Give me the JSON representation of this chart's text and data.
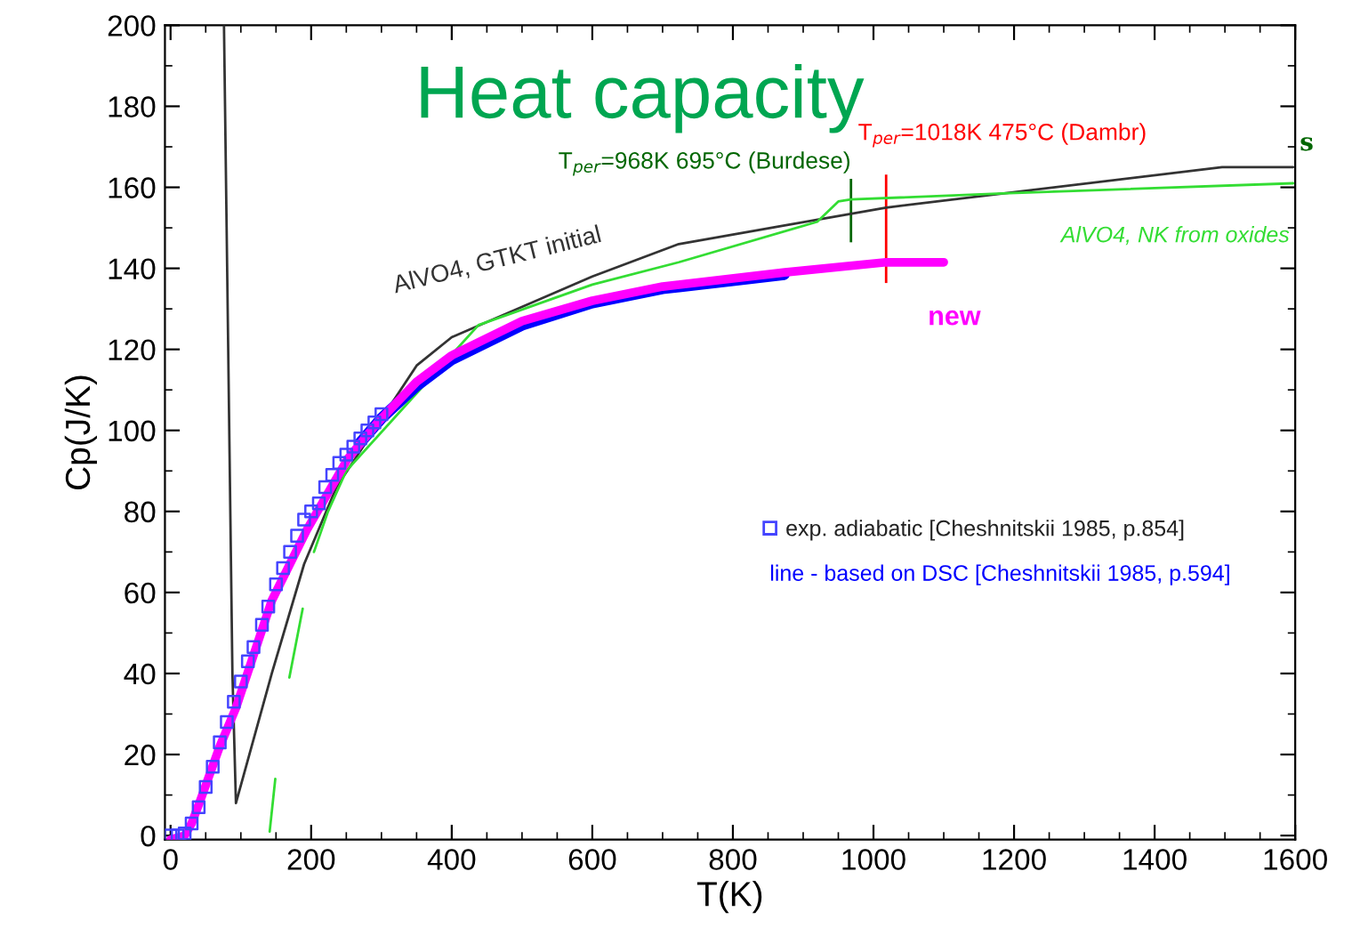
{
  "chart_data": {
    "type": "line",
    "title": "Heat capacity",
    "xlabel": "T(K)",
    "ylabel": "Cp(J/K)",
    "xlim": [
      -8,
      1600
    ],
    "ylim": [
      -1,
      200
    ],
    "xticks": [
      0,
      200,
      400,
      600,
      800,
      1000,
      1200,
      1400,
      1600
    ],
    "yticks": [
      0,
      20,
      40,
      60,
      80,
      100,
      120,
      140,
      160,
      180,
      200
    ],
    "grid": false,
    "legend": "right",
    "series": [
      {
        "name": "AlVO4, GTKT initial",
        "color": "#333333",
        "x": [
          76,
          88,
          93,
          144,
          190,
          236,
          350,
          400,
          600,
          723,
          1018,
          1496,
          1597
        ],
        "values": [
          200,
          40,
          8,
          40,
          67,
          86,
          116,
          123,
          138,
          146,
          155,
          165,
          165
        ]
      },
      {
        "name": "AlVO4, NK from oxides",
        "color": "#33dd33",
        "x": [
          141,
          149,
          160,
          169,
          188,
          196,
          204,
          224,
          250,
          438,
          600,
          723,
          920,
          950,
          968,
          1184,
          1597
        ],
        "values": [
          1,
          14,
          null,
          39,
          56,
          null,
          70,
          80,
          90,
          126,
          136,
          141.5,
          151.5,
          156.5,
          157,
          158.5,
          161
        ]
      },
      {
        "name": "line - based on DSC [Cheshnitskii 1985, p.594]",
        "color": "#0000ff",
        "x": [
          270,
          300,
          350,
          400,
          500,
          600,
          700,
          800,
          873
        ],
        "values": [
          97,
          103,
          111,
          117.5,
          126,
          131.5,
          135,
          137,
          138.5
        ]
      },
      {
        "name": "new",
        "color": "#ff00ff",
        "x": [
          0,
          20,
          30,
          43,
          70,
          93,
          144,
          194,
          252,
          295,
          350,
          400,
          500,
          600,
          700,
          874,
          1018,
          1100
        ],
        "values": [
          -1,
          0,
          3,
          9,
          22,
          31.5,
          58,
          75.5,
          93,
          102,
          112,
          118.5,
          127,
          132,
          135.5,
          139,
          141.5,
          141.5
        ]
      },
      {
        "name": "exp. adiabatic [Cheshnitskii 1985, p.854]",
        "type": "scatter",
        "marker": "square",
        "color": "#4444ff",
        "x": [
          0,
          10,
          20,
          30,
          40,
          50,
          60,
          70,
          80,
          90,
          100,
          110,
          118,
          130,
          139,
          150,
          160,
          170,
          180,
          190,
          200,
          211,
          220,
          230,
          240,
          250,
          260,
          270,
          280,
          290,
          300
        ],
        "values": [
          0,
          0,
          0.5,
          3,
          7,
          12,
          17,
          23,
          28,
          33,
          38,
          43,
          46.5,
          52,
          56.5,
          62,
          66,
          70,
          74,
          78,
          80,
          82,
          86,
          89,
          92,
          94,
          96,
          98,
          100,
          102,
          104
        ]
      }
    ],
    "ref_lines": [
      {
        "axis": "x",
        "value": 968,
        "label": "T$_{per}$=968K 695°C (Burdese)",
        "color": "#006600"
      },
      {
        "axis": "x",
        "value": 1018,
        "label": "T$_{per}$=1018K 475°C (Dambr)",
        "color": "#ff0000"
      }
    ],
    "annotations": [
      "s"
    ]
  }
}
